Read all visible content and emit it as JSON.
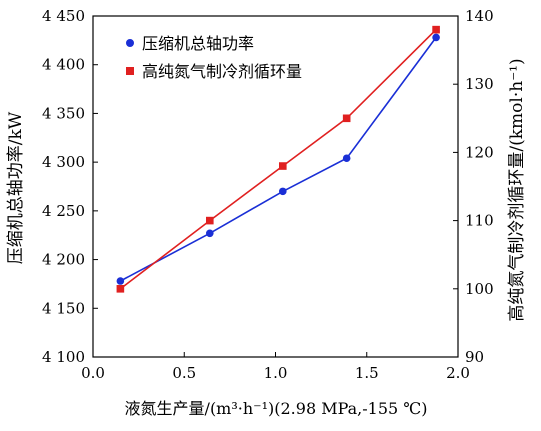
{
  "chart_data": {
    "type": "line",
    "xlabel": "液氮生产量/(m³·h⁻¹)(2.98 MPa,-155 ℃)",
    "ylabel_left": "压缩机总轴功率/kW",
    "ylabel_right": "高纯氮气制冷剂循环量/(kmol·h⁻¹)",
    "xlim": [
      0.0,
      2.0
    ],
    "ylim_left": [
      4100,
      4450
    ],
    "ylim_right": [
      90,
      140
    ],
    "x_ticks": [
      "0.0",
      "0.5",
      "1.0",
      "1.5",
      "2.0"
    ],
    "y_left_ticks": [
      "4 100",
      "4 150",
      "4 200",
      "4 250",
      "4 300",
      "4 350",
      "4 400",
      "4 450"
    ],
    "y_right_ticks": [
      "90",
      "100",
      "110",
      "120",
      "130",
      "140"
    ],
    "grid": false,
    "legend_position": "top-left",
    "series": [
      {
        "name": "压缩机总轴功率",
        "axis": "left",
        "color": "#1a2fd6",
        "marker": "circle",
        "x": [
          0.15,
          0.64,
          1.04,
          1.39,
          1.88
        ],
        "y": [
          4178,
          4227,
          4270,
          4304,
          4428
        ]
      },
      {
        "name": "高纯氮气制冷剂循环量",
        "axis": "right",
        "color": "#e02020",
        "marker": "square",
        "x": [
          0.15,
          0.64,
          1.04,
          1.39,
          1.88
        ],
        "y": [
          100,
          110,
          118,
          125,
          138
        ]
      }
    ]
  }
}
